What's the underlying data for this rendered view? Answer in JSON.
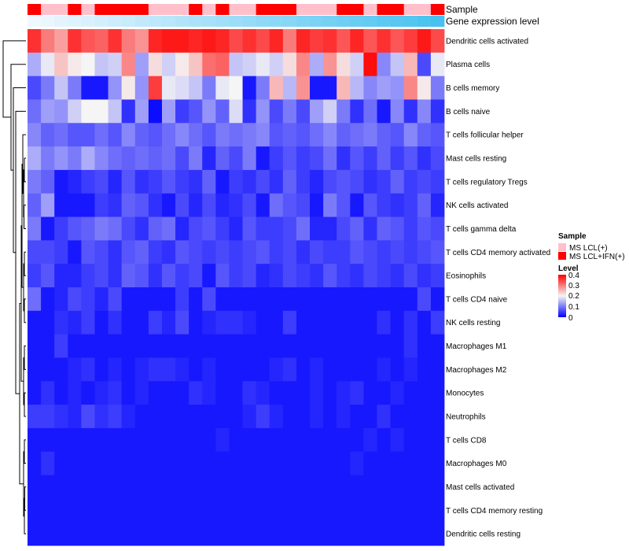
{
  "chart_data": {
    "type": "heatmap",
    "title": "",
    "rows": [
      "Dendritic cells activated",
      "Plasma cells",
      "B cells memory",
      "B cells naive",
      "T cells follicular helper",
      "Mast cells resting",
      "T cells regulatory  Tregs",
      "NK cells activated",
      "T cells gamma delta",
      "T cells CD4 memory activated",
      "Eosinophils",
      "T cells CD4 naive",
      "NK cells resting",
      "Macrophages M1",
      "Macrophages M2",
      "Monocytes",
      "Neutrophils",
      "T cells CD8",
      "Macrophages M0",
      "Mast cells activated",
      "T cells CD4 memory resting",
      "Dendritic cells resting"
    ],
    "n_columns": 31,
    "values": [
      [
        0.36,
        0.3,
        0.27,
        0.36,
        0.33,
        0.32,
        0.36,
        0.3,
        0.28,
        0.37,
        0.38,
        0.38,
        0.37,
        0.38,
        0.37,
        0.34,
        0.36,
        0.34,
        0.37,
        0.3,
        0.37,
        0.35,
        0.36,
        0.33,
        0.37,
        0.33,
        0.36,
        0.33,
        0.35,
        0.38,
        0.34
      ],
      [
        0.14,
        0.19,
        0.24,
        0.21,
        0.2,
        0.16,
        0.17,
        0.29,
        0.13,
        0.22,
        0.17,
        0.21,
        0.24,
        0.31,
        0.32,
        0.16,
        0.17,
        0.19,
        0.17,
        0.22,
        0.29,
        0.14,
        0.28,
        0.22,
        0.17,
        0.39,
        0.11,
        0.16,
        0.25,
        0.06,
        0.19
      ],
      [
        0.06,
        0.1,
        0.16,
        0.1,
        0.02,
        0.02,
        0.12,
        0.21,
        0.12,
        0.35,
        0.19,
        0.18,
        0.16,
        0.1,
        0.19,
        0.2,
        0.02,
        0.1,
        0.25,
        0.15,
        0.28,
        0.02,
        0.02,
        0.25,
        0.15,
        0.11,
        0.13,
        0.12,
        0.29,
        0.21,
        0.1
      ],
      [
        0.09,
        0.13,
        0.12,
        0.17,
        0.2,
        0.2,
        0.16,
        0.04,
        0.13,
        0.01,
        0.13,
        0.05,
        0.07,
        0.12,
        0.08,
        0.18,
        0.04,
        0.12,
        0.06,
        0.1,
        0.06,
        0.13,
        0.17,
        0.1,
        0.04,
        0.09,
        0.02,
        0.11,
        0.04,
        0.11,
        0.04
      ],
      [
        0.11,
        0.08,
        0.09,
        0.07,
        0.07,
        0.09,
        0.07,
        0.11,
        0.08,
        0.07,
        0.09,
        0.11,
        0.09,
        0.07,
        0.1,
        0.09,
        0.1,
        0.11,
        0.07,
        0.08,
        0.07,
        0.09,
        0.11,
        0.08,
        0.09,
        0.1,
        0.08,
        0.07,
        0.11,
        0.08,
        0.07
      ],
      [
        0.14,
        0.1,
        0.12,
        0.1,
        0.14,
        0.11,
        0.09,
        0.08,
        0.09,
        0.08,
        0.09,
        0.06,
        0.1,
        0.03,
        0.08,
        0.06,
        0.1,
        0.02,
        0.05,
        0.07,
        0.05,
        0.06,
        0.09,
        0.04,
        0.07,
        0.05,
        0.08,
        0.05,
        0.07,
        0.04,
        0.06
      ],
      [
        0.1,
        0.08,
        0.02,
        0.03,
        0.05,
        0.06,
        0.03,
        0.07,
        0.04,
        0.05,
        0.07,
        0.05,
        0.04,
        0.08,
        0.02,
        0.05,
        0.04,
        0.06,
        0.04,
        0.08,
        0.05,
        0.03,
        0.06,
        0.07,
        0.06,
        0.04,
        0.05,
        0.08,
        0.05,
        0.06,
        0.05
      ],
      [
        0.08,
        0.13,
        0.02,
        0.02,
        0.02,
        0.05,
        0.04,
        0.08,
        0.07,
        0.04,
        0.02,
        0.06,
        0.03,
        0.06,
        0.03,
        0.04,
        0.06,
        0.02,
        0.09,
        0.07,
        0.06,
        0.02,
        0.1,
        0.07,
        0.02,
        0.07,
        0.05,
        0.04,
        0.05,
        0.08,
        0.03
      ],
      [
        0.1,
        0.02,
        0.05,
        0.07,
        0.08,
        0.1,
        0.09,
        0.06,
        0.04,
        0.08,
        0.09,
        0.03,
        0.06,
        0.07,
        0.05,
        0.03,
        0.07,
        0.05,
        0.05,
        0.06,
        0.09,
        0.03,
        0.03,
        0.06,
        0.08,
        0.04,
        0.08,
        0.07,
        0.05,
        0.07,
        0.06
      ],
      [
        0.06,
        0.06,
        0.05,
        0.02,
        0.07,
        0.06,
        0.04,
        0.07,
        0.08,
        0.05,
        0.04,
        0.07,
        0.06,
        0.05,
        0.06,
        0.05,
        0.06,
        0.07,
        0.05,
        0.06,
        0.04,
        0.06,
        0.05,
        0.05,
        0.07,
        0.06,
        0.05,
        0.06,
        0.05,
        0.06,
        0.07
      ],
      [
        0.05,
        0.07,
        0.03,
        0.03,
        0.05,
        0.06,
        0.04,
        0.08,
        0.07,
        0.04,
        0.07,
        0.05,
        0.06,
        0.02,
        0.07,
        0.05,
        0.06,
        0.03,
        0.04,
        0.06,
        0.05,
        0.04,
        0.07,
        0.05,
        0.04,
        0.06,
        0.05,
        0.04,
        0.06,
        0.04,
        0.05
      ],
      [
        0.09,
        0.02,
        0.03,
        0.06,
        0.05,
        0.03,
        0.06,
        0.02,
        0.02,
        0.02,
        0.02,
        0.05,
        0.02,
        0.06,
        0.02,
        0.02,
        0.02,
        0.02,
        0.02,
        0.02,
        0.02,
        0.02,
        0.02,
        0.02,
        0.02,
        0.02,
        0.02,
        0.02,
        0.02,
        0.06,
        0.02
      ],
      [
        0.02,
        0.02,
        0.04,
        0.03,
        0.05,
        0.02,
        0.04,
        0.02,
        0.02,
        0.05,
        0.03,
        0.06,
        0.02,
        0.03,
        0.04,
        0.04,
        0.03,
        0.02,
        0.02,
        0.05,
        0.02,
        0.02,
        0.02,
        0.02,
        0.02,
        0.02,
        0.04,
        0.02,
        0.04,
        0.02,
        0.05
      ],
      [
        0.02,
        0.02,
        0.05,
        0.02,
        0.02,
        0.02,
        0.02,
        0.02,
        0.02,
        0.02,
        0.02,
        0.02,
        0.02,
        0.02,
        0.02,
        0.02,
        0.02,
        0.02,
        0.02,
        0.02,
        0.02,
        0.02,
        0.02,
        0.02,
        0.02,
        0.02,
        0.02,
        0.02,
        0.04,
        0.02,
        0.02
      ],
      [
        0.02,
        0.02,
        0.02,
        0.03,
        0.04,
        0.02,
        0.03,
        0.02,
        0.03,
        0.04,
        0.04,
        0.03,
        0.02,
        0.03,
        0.02,
        0.02,
        0.02,
        0.02,
        0.03,
        0.04,
        0.02,
        0.03,
        0.02,
        0.02,
        0.02,
        0.02,
        0.03,
        0.02,
        0.03,
        0.02,
        0.02
      ],
      [
        0.02,
        0.04,
        0.02,
        0.03,
        0.02,
        0.03,
        0.04,
        0.02,
        0.03,
        0.02,
        0.02,
        0.02,
        0.04,
        0.03,
        0.02,
        0.02,
        0.04,
        0.03,
        0.02,
        0.02,
        0.02,
        0.03,
        0.02,
        0.03,
        0.04,
        0.02,
        0.02,
        0.03,
        0.02,
        0.02,
        0.02
      ],
      [
        0.05,
        0.05,
        0.04,
        0.03,
        0.06,
        0.04,
        0.05,
        0.03,
        0.02,
        0.02,
        0.02,
        0.02,
        0.02,
        0.02,
        0.02,
        0.02,
        0.03,
        0.05,
        0.03,
        0.02,
        0.02,
        0.03,
        0.02,
        0.03,
        0.02,
        0.02,
        0.04,
        0.02,
        0.02,
        0.02,
        0.02
      ],
      [
        0.02,
        0.02,
        0.02,
        0.02,
        0.02,
        0.02,
        0.02,
        0.02,
        0.02,
        0.02,
        0.02,
        0.02,
        0.02,
        0.02,
        0.03,
        0.02,
        0.02,
        0.02,
        0.02,
        0.02,
        0.02,
        0.02,
        0.02,
        0.02,
        0.02,
        0.03,
        0.02,
        0.03,
        0.02,
        0.02,
        0.02
      ],
      [
        0.02,
        0.04,
        0.02,
        0.02,
        0.02,
        0.02,
        0.02,
        0.02,
        0.02,
        0.02,
        0.02,
        0.02,
        0.02,
        0.02,
        0.02,
        0.02,
        0.02,
        0.02,
        0.02,
        0.02,
        0.02,
        0.02,
        0.02,
        0.02,
        0.03,
        0.02,
        0.02,
        0.02,
        0.02,
        0.02,
        0.02
      ],
      [
        0.02,
        0.02,
        0.02,
        0.02,
        0.02,
        0.02,
        0.02,
        0.02,
        0.02,
        0.02,
        0.02,
        0.02,
        0.02,
        0.02,
        0.02,
        0.02,
        0.02,
        0.02,
        0.02,
        0.02,
        0.02,
        0.02,
        0.02,
        0.02,
        0.02,
        0.02,
        0.02,
        0.02,
        0.02,
        0.02,
        0.02
      ],
      [
        0.02,
        0.02,
        0.02,
        0.02,
        0.02,
        0.02,
        0.02,
        0.02,
        0.02,
        0.02,
        0.02,
        0.02,
        0.02,
        0.02,
        0.02,
        0.02,
        0.02,
        0.02,
        0.02,
        0.02,
        0.02,
        0.02,
        0.02,
        0.02,
        0.02,
        0.02,
        0.02,
        0.02,
        0.02,
        0.02,
        0.02
      ],
      [
        0.02,
        0.02,
        0.02,
        0.02,
        0.02,
        0.02,
        0.02,
        0.02,
        0.02,
        0.02,
        0.02,
        0.02,
        0.02,
        0.02,
        0.02,
        0.02,
        0.02,
        0.02,
        0.02,
        0.02,
        0.02,
        0.02,
        0.02,
        0.02,
        0.02,
        0.02,
        0.02,
        0.02,
        0.02,
        0.02,
        0.02
      ]
    ],
    "sample_groups": [
      1,
      0,
      0,
      1,
      0,
      1,
      1,
      1,
      1,
      0,
      0,
      0,
      1,
      0,
      1,
      0,
      0,
      1,
      1,
      1,
      0,
      0,
      0,
      1,
      1,
      0,
      1,
      1,
      0,
      0,
      1
    ],
    "gene_expression_level": [
      0.0,
      0.03,
      0.07,
      0.1,
      0.13,
      0.17,
      0.2,
      0.23,
      0.27,
      0.3,
      0.33,
      0.37,
      0.4,
      0.43,
      0.47,
      0.5,
      0.53,
      0.57,
      0.6,
      0.63,
      0.67,
      0.7,
      0.73,
      0.77,
      0.8,
      0.83,
      0.87,
      0.9,
      0.93,
      0.97,
      1.0
    ],
    "annotation_labels": {
      "sample": "Sample",
      "gene_expression": "Gene expression level"
    },
    "legend": {
      "sample_title": "Sample",
      "sample_items": [
        "MS LCL(+)",
        "MS LCL+IFN(+)"
      ],
      "sample_colors": [
        "#FFC0CB",
        "#FF0000"
      ],
      "level_title": "Level",
      "level_ticks": [
        "0.4",
        "0.3",
        "0.2",
        "0.1",
        "0"
      ],
      "level_range": [
        0,
        0.4
      ]
    },
    "colors": {
      "low": "#0000FF",
      "mid": "#F5F5F5",
      "high": "#FF0000",
      "annotation_low": "#F0F8FF",
      "annotation_high": "#47C2F0"
    }
  }
}
